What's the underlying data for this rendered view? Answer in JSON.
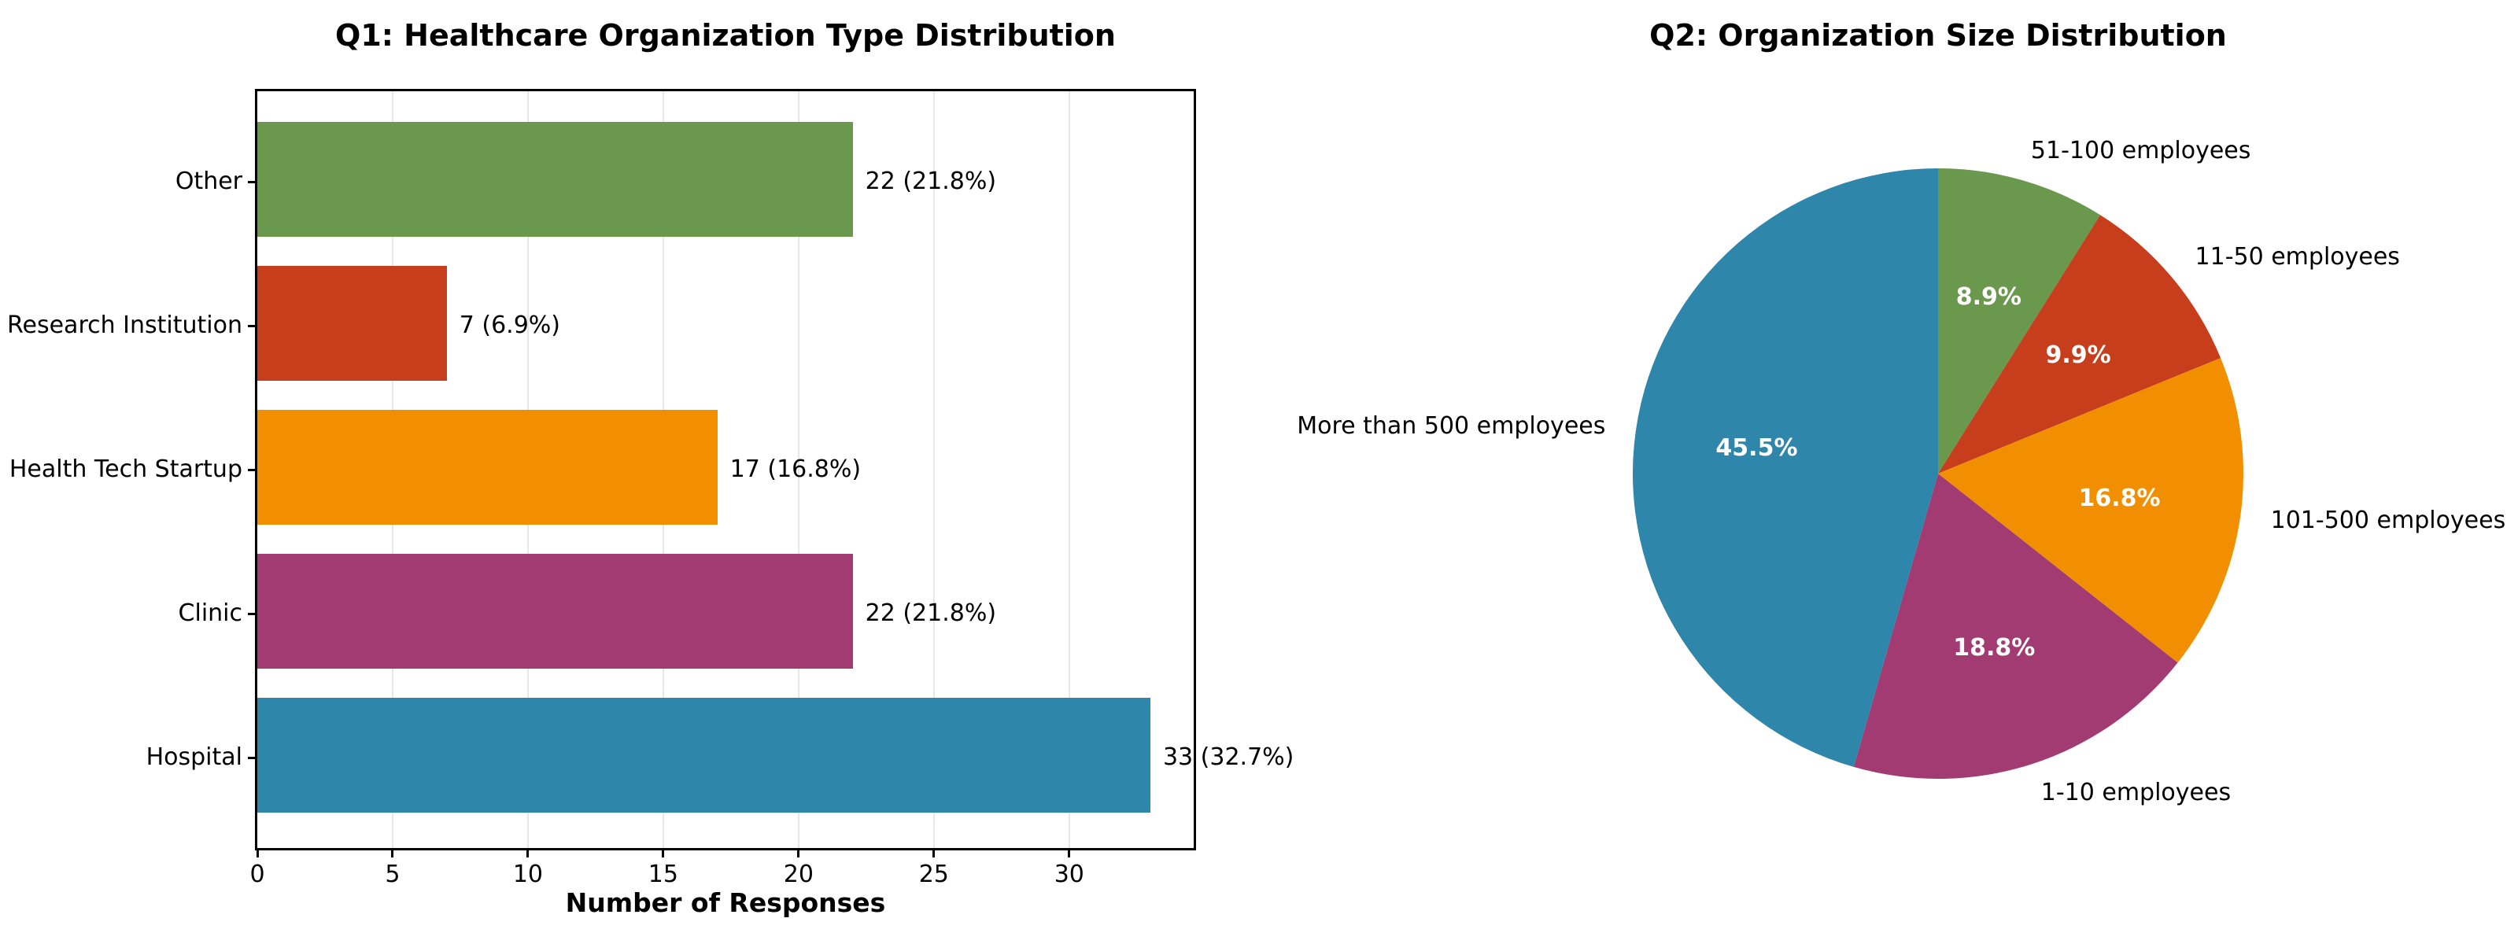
{
  "figure": {
    "background": "#ffffff"
  },
  "q1": {
    "title": "Q1: Healthcare Organization Type Distribution",
    "xlabel": "Number of Responses"
  },
  "q2": {
    "title": "Q2: Organization Size Distribution"
  },
  "chart_data": [
    {
      "type": "bar",
      "orientation": "horizontal",
      "title": "Q1: Healthcare Organization Type Distribution",
      "xlabel": "Number of Responses",
      "ylabel": "",
      "categories_top_to_bottom": [
        "Other",
        "Research Institution",
        "Health Tech Startup",
        "Clinic",
        "Hospital"
      ],
      "values": [
        22,
        7,
        17,
        22,
        33
      ],
      "value_labels": [
        "22 (21.8%)",
        "7 (6.9%)",
        "17 (16.8%)",
        "22 (21.8%)",
        "33 (32.7%)"
      ],
      "colors": [
        "#6A994E",
        "#C73E1D",
        "#F18F01",
        "#A23B72",
        "#2E86AB"
      ],
      "xlim": [
        0,
        34.6
      ],
      "xticks": [
        0,
        5,
        10,
        15,
        20,
        25,
        30
      ],
      "grid": "vertical, light gray, behind bars",
      "legend": "none"
    },
    {
      "type": "pie",
      "title": "Q2: Organization Size Distribution",
      "start_angle": "12 o'clock",
      "direction": "clockwise",
      "legend": "none",
      "slices": [
        {
          "label": "51-100 employees",
          "pct": 8.9,
          "pct_label": "8.9%",
          "color": "#6A994E"
        },
        {
          "label": "11-50 employees",
          "pct": 9.9,
          "pct_label": "9.9%",
          "color": "#C73E1D"
        },
        {
          "label": "101-500 employees",
          "pct": 16.8,
          "pct_label": "16.8%",
          "color": "#F18F01"
        },
        {
          "label": "1-10 employees",
          "pct": 18.8,
          "pct_label": "18.8%",
          "color": "#A23B72"
        },
        {
          "label": "More than 500 employees",
          "pct": 45.5,
          "pct_label": "45.5%",
          "color": "#2E86AB"
        }
      ]
    }
  ]
}
